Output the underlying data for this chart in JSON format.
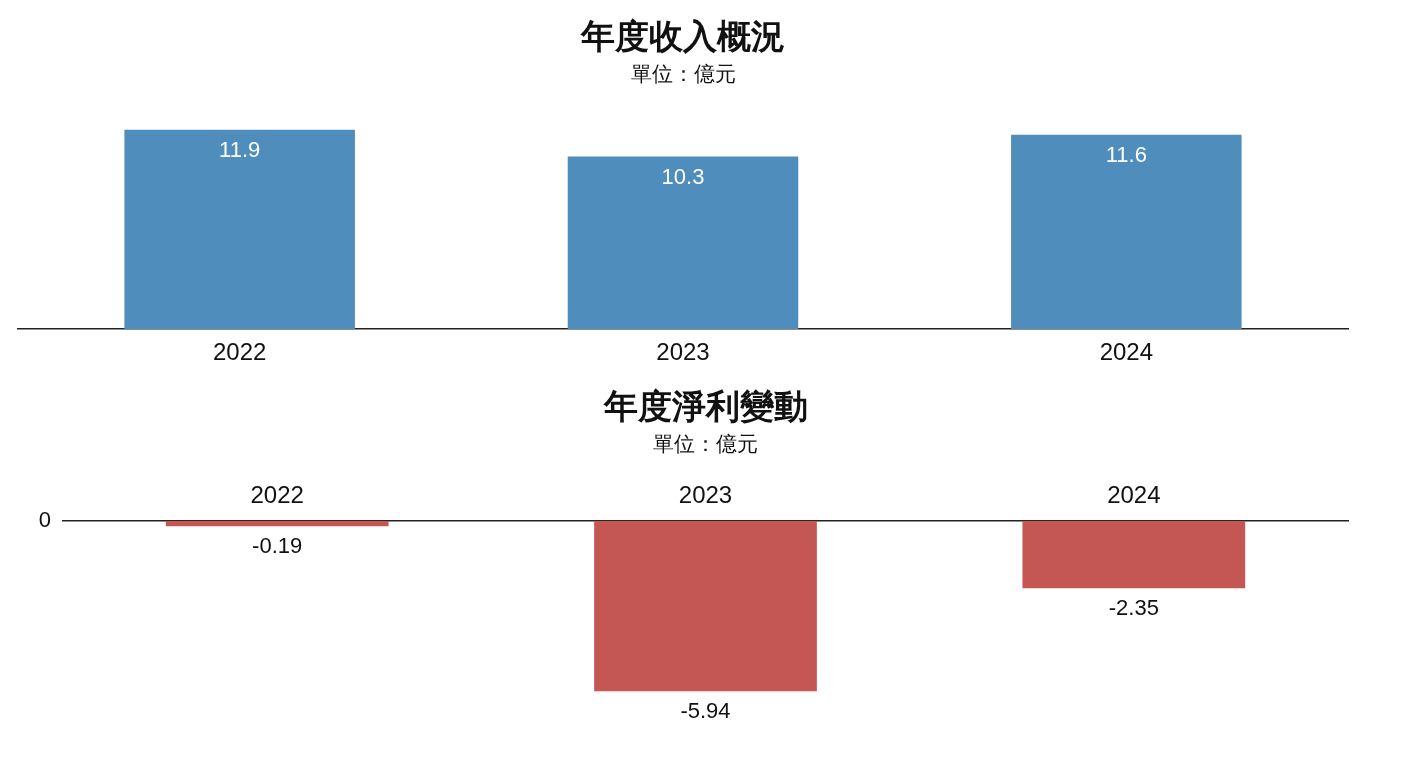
{
  "chart_data": [
    {
      "type": "bar",
      "title": "年度收入概況",
      "subtitle": "單位：億元",
      "categories": [
        "2022",
        "2023",
        "2024"
      ],
      "values": [
        11.9,
        10.3,
        11.6
      ],
      "color": "#4f8dbd",
      "data_labels": true,
      "grid": false,
      "legend": false
    },
    {
      "type": "bar",
      "title": "年度淨利變動",
      "subtitle": "單位：億元",
      "categories": [
        "2022",
        "2023",
        "2024"
      ],
      "values": [
        -0.19,
        -5.94,
        -2.35
      ],
      "color": "#c45753",
      "data_labels": true,
      "annotations": [
        "0"
      ],
      "grid": false,
      "legend": false
    }
  ]
}
